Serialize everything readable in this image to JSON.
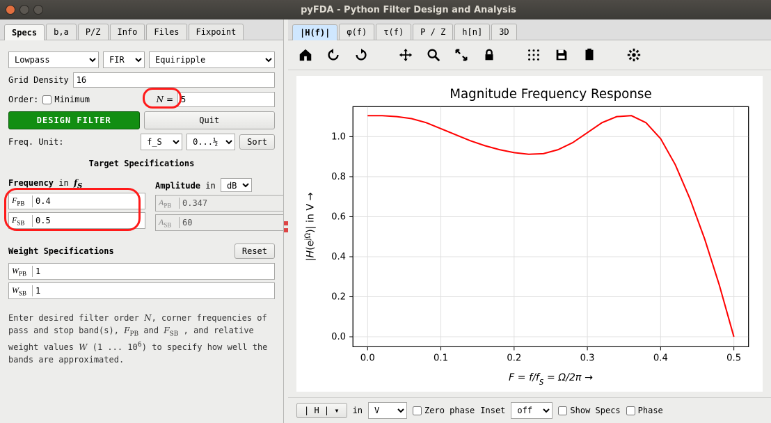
{
  "window": {
    "title": "pyFDA - Python Filter Design and Analysis"
  },
  "leftTabs": [
    "Specs",
    "b,a",
    "P/Z",
    "Info",
    "Files",
    "Fixpoint"
  ],
  "leftTabActive": 0,
  "filterType": {
    "response": "Lowpass",
    "kind": "FIR",
    "algo": "Equiripple"
  },
  "gridDensity": {
    "label": "Grid Density",
    "value": "16"
  },
  "order": {
    "label": "Order:",
    "minLabel": "Minimum",
    "nLabel": "N =",
    "n": "5"
  },
  "buttons": {
    "design": "DESIGN FILTER",
    "quit": "Quit",
    "reset": "Reset",
    "sort": "Sort"
  },
  "freqUnit": {
    "label": "Freq. Unit:",
    "unit": "f_S",
    "fmt": "0...½"
  },
  "targetSpecs": {
    "title": "Target Specifications",
    "freqTitle": "Frequency",
    "freqIn": " in ",
    "freqUnit": "f",
    "ampTitle": "Amplitude",
    "ampIn": " in ",
    "ampUnit": "dB",
    "F_PB": "0.4",
    "F_SB": "0.5",
    "A_PB": "0.347",
    "A_SB": "60"
  },
  "weightSpecs": {
    "title": "Weight Specifications",
    "W_PB": "1",
    "W_SB": "1"
  },
  "hint": {
    "l1": "Enter desired filter order ",
    "N": "N",
    "l2": ", corner frequencies of pass and stop band(s), ",
    "FPB": "F",
    "l3": " and ",
    "FSB": "F",
    "l4": " , and relative weight values ",
    "W": "W",
    "l5": " (1 ... 10",
    "exp": "6",
    "l6": ") to specify how well the bands are approximated."
  },
  "rightTabs": [
    "|H(f)|",
    "φ(f)",
    "τ(f)",
    "P / Z",
    "h[n]",
    "3D"
  ],
  "rightTabActive": 0,
  "chart": {
    "title": "Magnitude Frequency Response",
    "ylabel_pre": "|",
    "ylabel_H": "H",
    "ylabel_post": "(e",
    "ylabel_exp": "jΩ",
    "ylabel_close": ")| in V →",
    "xlabel": "F = f/f",
    "xlabel_sub": "S",
    "xlabel_post": " = Ω/2π →",
    "xlim": [
      -0.02,
      0.52
    ],
    "ylim": [
      -0.05,
      1.15
    ],
    "xticks": [
      0.0,
      0.1,
      0.2,
      0.3,
      0.4,
      0.5
    ],
    "yticks": [
      0.0,
      0.2,
      0.4,
      0.6,
      0.8,
      1.0
    ],
    "line_color": "#ff0000",
    "line_width": 2,
    "grid_color": "#e0e0e0",
    "axis_color": "#000000",
    "bg": "#ffffff",
    "title_fontsize": 18,
    "tick_fontsize": 13,
    "label_fontsize": 14,
    "points": [
      [
        0.0,
        1.105
      ],
      [
        0.02,
        1.105
      ],
      [
        0.04,
        1.1
      ],
      [
        0.06,
        1.09
      ],
      [
        0.08,
        1.07
      ],
      [
        0.1,
        1.04
      ],
      [
        0.12,
        1.01
      ],
      [
        0.14,
        0.98
      ],
      [
        0.16,
        0.955
      ],
      [
        0.18,
        0.935
      ],
      [
        0.2,
        0.92
      ],
      [
        0.22,
        0.912
      ],
      [
        0.24,
        0.915
      ],
      [
        0.26,
        0.935
      ],
      [
        0.28,
        0.97
      ],
      [
        0.3,
        1.02
      ],
      [
        0.32,
        1.07
      ],
      [
        0.34,
        1.1
      ],
      [
        0.36,
        1.105
      ],
      [
        0.38,
        1.07
      ],
      [
        0.4,
        0.99
      ],
      [
        0.42,
        0.86
      ],
      [
        0.44,
        0.69
      ],
      [
        0.46,
        0.49
      ],
      [
        0.48,
        0.26
      ],
      [
        0.5,
        0.0
      ]
    ]
  },
  "bottom": {
    "hBtn": "| H |",
    "in": "in",
    "unit": "V",
    "zeroPhase": "Zero phase",
    "inset": "Inset",
    "insetVal": "off",
    "showSpecs": "Show Specs",
    "phase": "Phase"
  }
}
